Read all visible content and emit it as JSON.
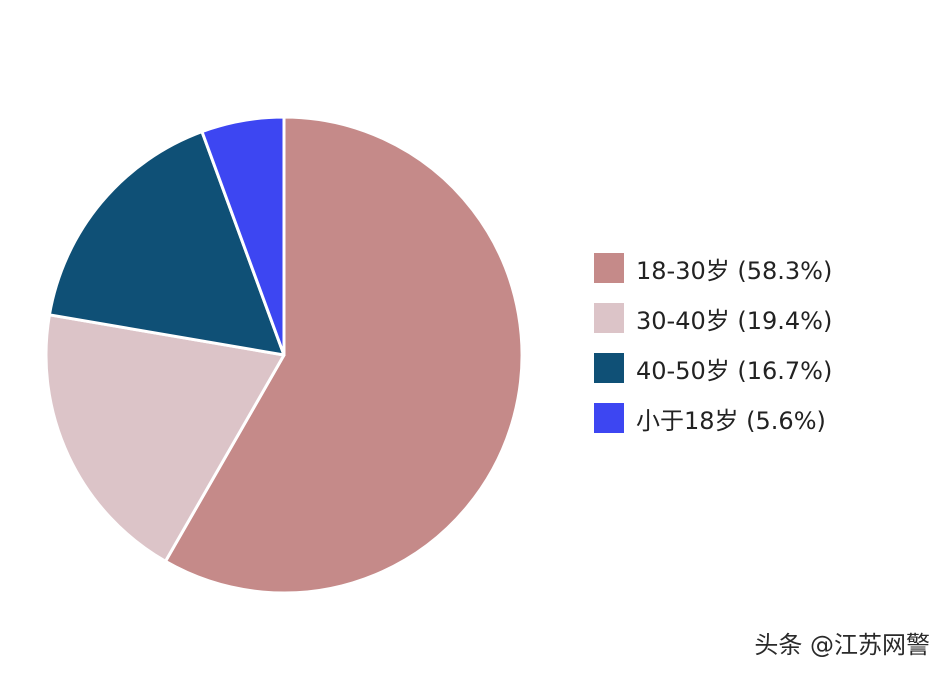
{
  "chart_data": {
    "type": "pie",
    "categories": [
      "18-30岁",
      "30-40岁",
      "40-50岁",
      "小于18岁"
    ],
    "values": [
      58.3,
      19.4,
      16.7,
      5.6
    ],
    "unit": "%",
    "colors": [
      "#c58a89",
      "#dcc4c8",
      "#0f5076",
      "#3d46f2"
    ],
    "legend": {
      "position": "right",
      "labels": [
        "18-30岁 (58.3%)",
        "30-40岁 (19.4%)",
        "40-50岁 (16.7%)",
        "小于18岁 (5.6%)"
      ]
    },
    "title": ""
  },
  "watermark": "头条 @江苏网警"
}
